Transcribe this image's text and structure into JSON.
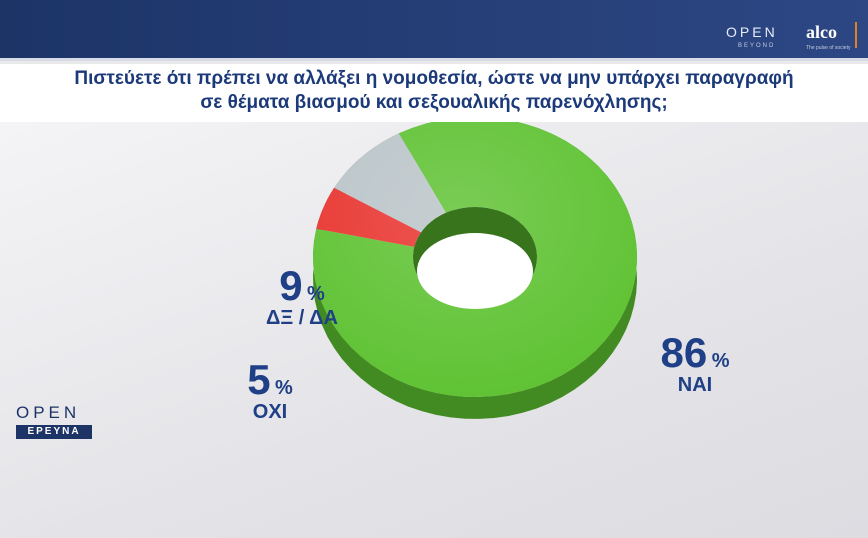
{
  "header": {
    "brand_open": "OPEN",
    "brand_beyond": "BEYOND",
    "brand_alco": "alco",
    "brand_tagline": "The pulse of society"
  },
  "question": {
    "line1": "Πιστεύετε ότι πρέπει να αλλάξει η νομοθεσία, ώστε να μην υπάρχει παραγραφή",
    "line2": "σε θέματα βιασμού και σεξουαλικής παρενόχλησης;"
  },
  "side_logo": {
    "open": "OPEN",
    "label": "ΕΡΕΥΝΑ"
  },
  "labels": {
    "yes": {
      "value": "86",
      "sign": "%",
      "name": "ΝΑΙ"
    },
    "no": {
      "value": "5",
      "sign": "%",
      "name": "ΟΧΙ"
    },
    "dk": {
      "value": "9",
      "sign": "%",
      "name": "ΔΞ / ΔΑ"
    }
  },
  "colors": {
    "yes": "#5cc12f",
    "no": "#e8312c",
    "dk": "#b9c3c7",
    "header": "#1c3466",
    "label_text": "#1f3f86"
  },
  "chart_data": {
    "type": "pie",
    "style": "3d-donut",
    "title": "Πιστεύετε ότι πρέπει να αλλάξει η νομοθεσία, ώστε να μην υπάρχει παραγραφή σε θέματα βιασμού και σεξουαλικής παρενόχλησης;",
    "categories": [
      "ΝΑΙ",
      "ΟΧΙ",
      "ΔΞ / ΔΑ"
    ],
    "values": [
      86,
      5,
      9
    ],
    "unit": "%"
  }
}
